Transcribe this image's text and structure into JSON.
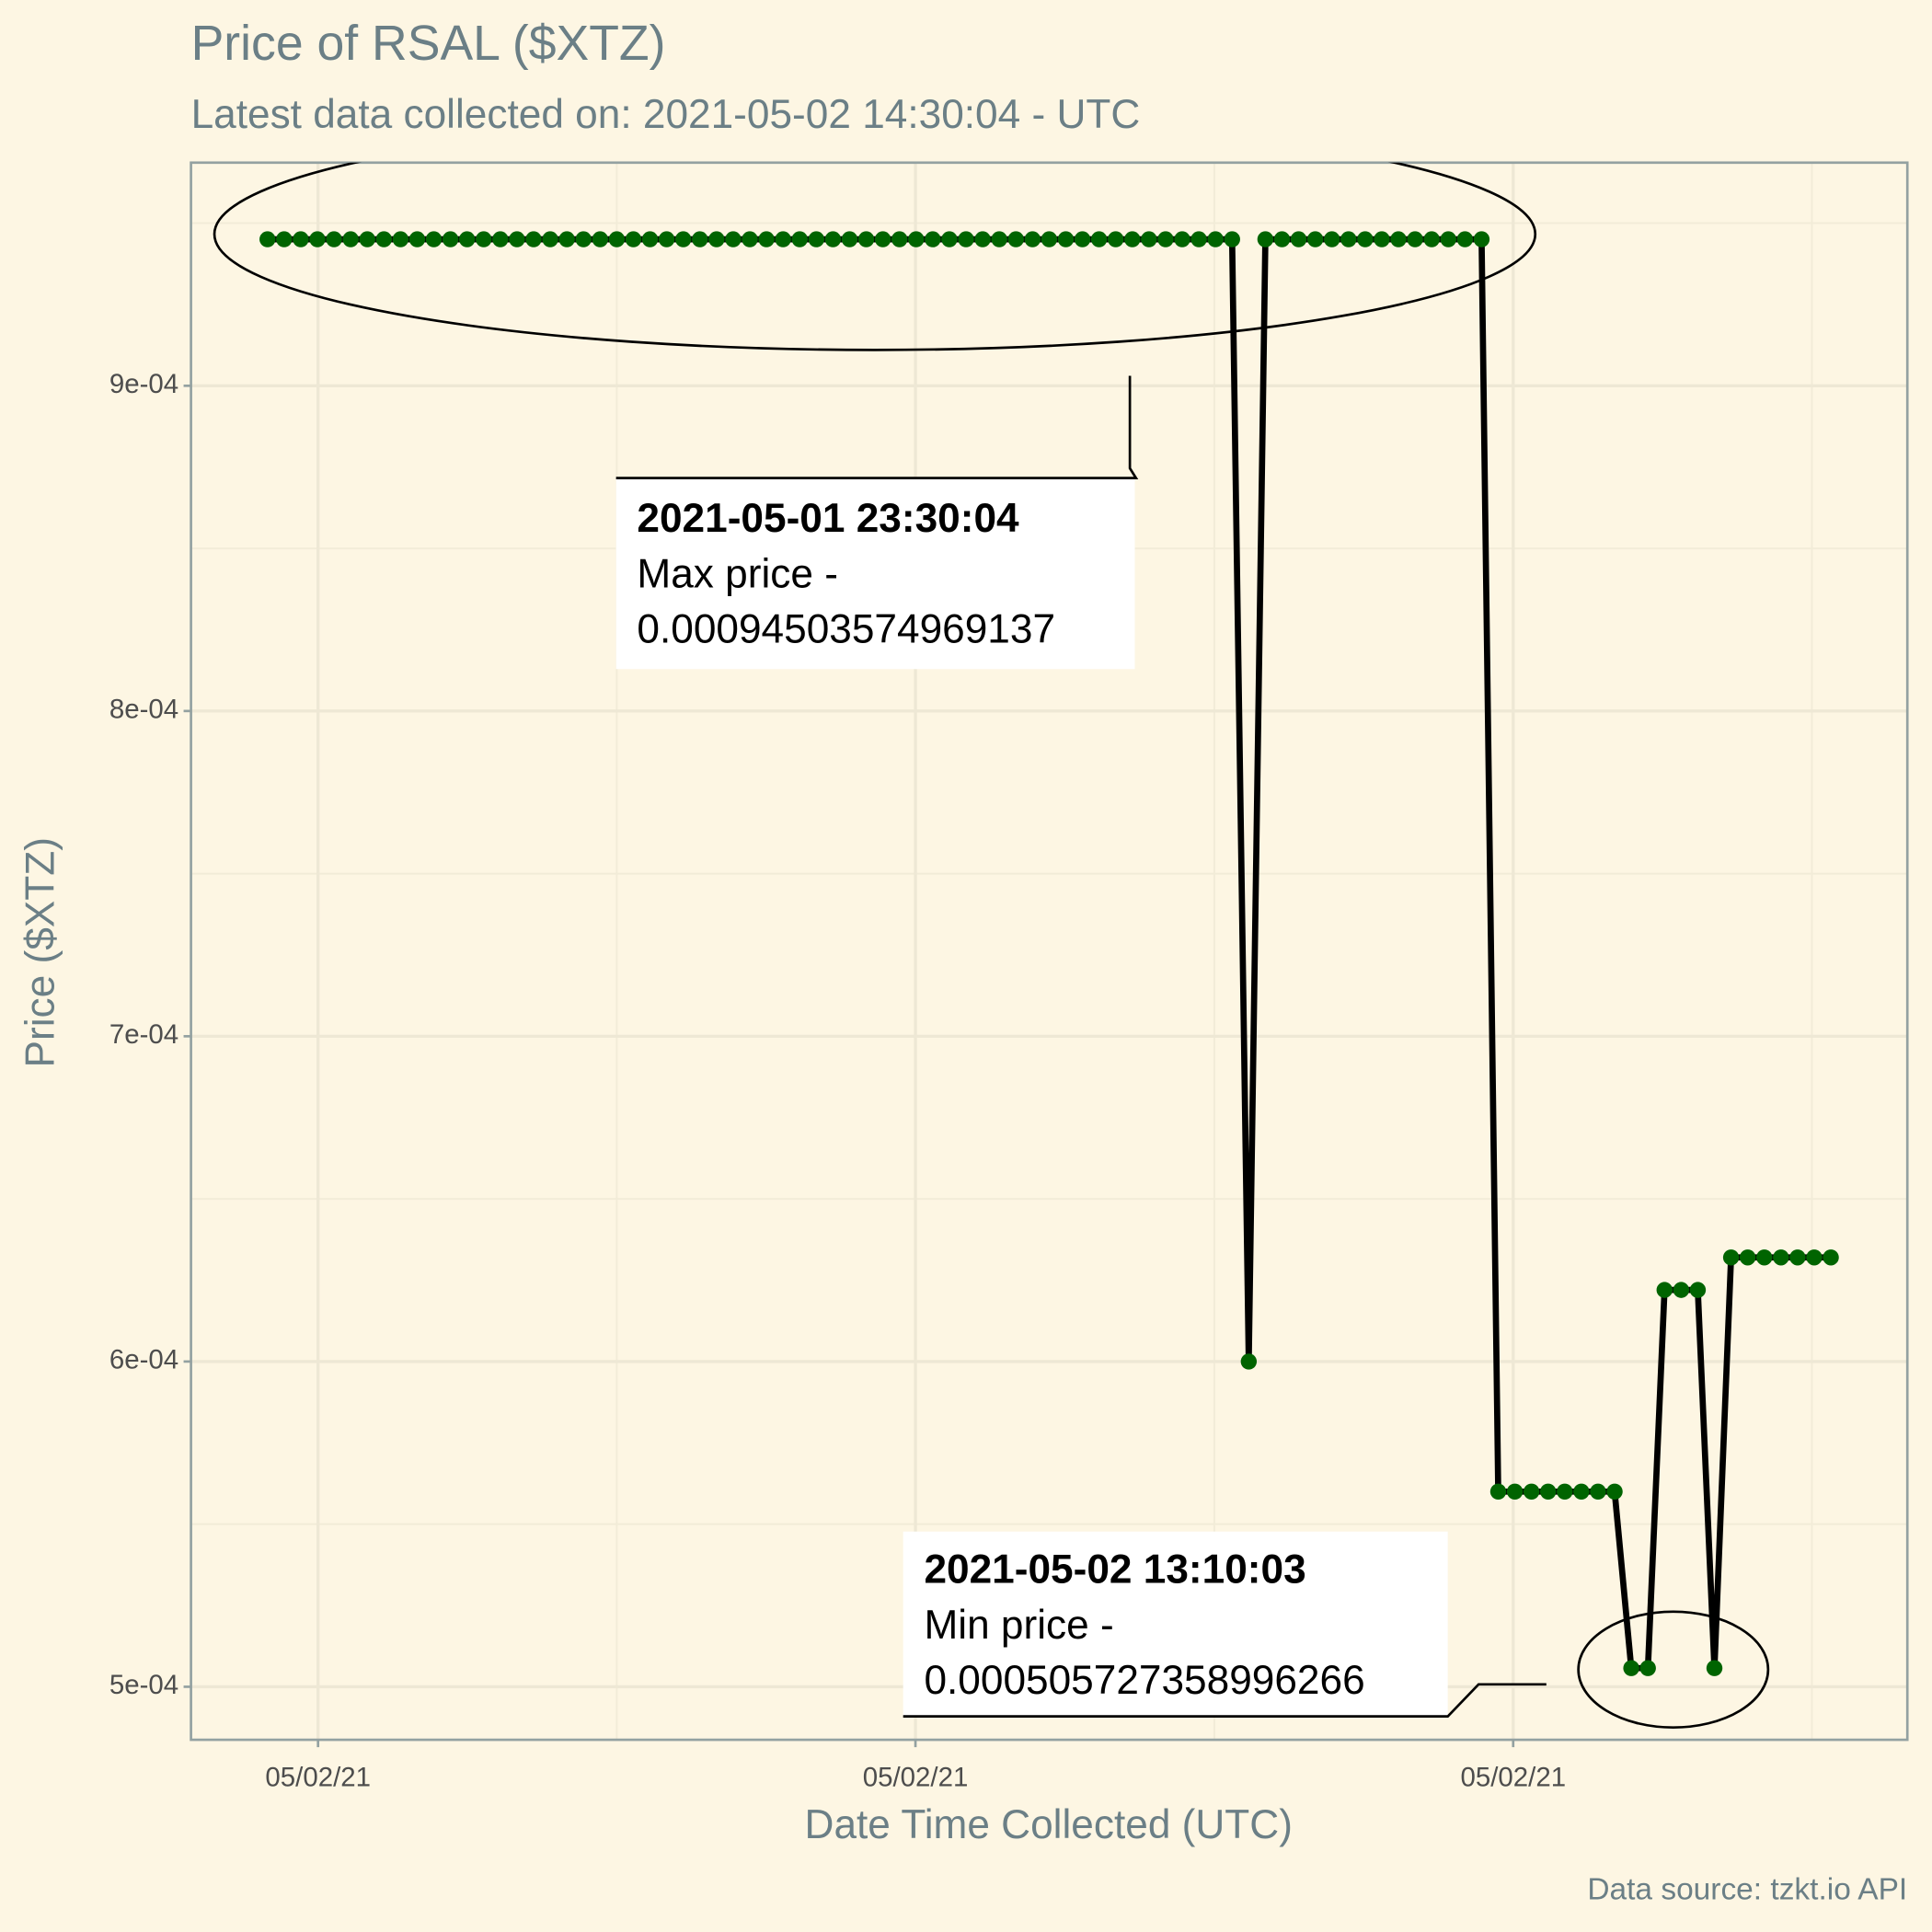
{
  "chart_data": {
    "type": "line",
    "title": "Price of RSAL ($XTZ)",
    "subtitle": "Latest data collected on: 2021-05-02 14:30:04  - UTC",
    "x_label": "Date Time Collected (UTC)",
    "y_label": "Price ($XTZ)",
    "caption": "Data source: tzkt.io API",
    "x": [
      0,
      1,
      2,
      3,
      4,
      5,
      6,
      7,
      8,
      9,
      10,
      11,
      12,
      13,
      14,
      15,
      16,
      17,
      18,
      19,
      20,
      21,
      22,
      23,
      24,
      25,
      26,
      27,
      28,
      29,
      30,
      31,
      32,
      33,
      34,
      35,
      36,
      37,
      38,
      39,
      40,
      41,
      42,
      43,
      44,
      45,
      46,
      47,
      48,
      49,
      50,
      51,
      52,
      53,
      54,
      55,
      56,
      57,
      58,
      59,
      60,
      61,
      62,
      63,
      64,
      65,
      66,
      67,
      68,
      69,
      70,
      71,
      72,
      73,
      74,
      75,
      76,
      77,
      78,
      79,
      80,
      81,
      82,
      83,
      84,
      85,
      86,
      87,
      88,
      89,
      90,
      91,
      92,
      93,
      94
    ],
    "series": [
      {
        "name": "Price",
        "color": "#006400",
        "line_color": "#000000",
        "values": [
          0.00094503574969137,
          0.00094503574969137,
          0.00094503574969137,
          0.00094503574969137,
          0.00094503574969137,
          0.00094503574969137,
          0.00094503574969137,
          0.00094503574969137,
          0.00094503574969137,
          0.00094503574969137,
          0.00094503574969137,
          0.00094503574969137,
          0.00094503574969137,
          0.00094503574969137,
          0.00094503574969137,
          0.00094503574969137,
          0.00094503574969137,
          0.00094503574969137,
          0.00094503574969137,
          0.00094503574969137,
          0.00094503574969137,
          0.00094503574969137,
          0.00094503574969137,
          0.00094503574969137,
          0.00094503574969137,
          0.00094503574969137,
          0.00094503574969137,
          0.00094503574969137,
          0.00094503574969137,
          0.00094503574969137,
          0.00094503574969137,
          0.00094503574969137,
          0.00094503574969137,
          0.00094503574969137,
          0.00094503574969137,
          0.00094503574969137,
          0.00094503574969137,
          0.00094503574969137,
          0.00094503574969137,
          0.00094503574969137,
          0.00094503574969137,
          0.00094503574969137,
          0.00094503574969137,
          0.00094503574969137,
          0.00094503574969137,
          0.00094503574969137,
          0.00094503574969137,
          0.00094503574969137,
          0.00094503574969137,
          0.00094503574969137,
          0.00094503574969137,
          0.00094503574969137,
          0.00094503574969137,
          0.00094503574969137,
          0.00094503574969137,
          0.00094503574969137,
          0.00094503574969137,
          0.00094503574969137,
          0.00094503574969137,
          0.0006,
          0.00094503574969137,
          0.00094503574969137,
          0.00094503574969137,
          0.00094503574969137,
          0.00094503574969137,
          0.00094503574969137,
          0.00094503574969137,
          0.00094503574969137,
          0.00094503574969137,
          0.00094503574969137,
          0.00094503574969137,
          0.00094503574969137,
          0.00094503574969137,
          0.00094503574969137,
          0.00056,
          0.00056,
          0.00056,
          0.00056,
          0.00056,
          0.00056,
          0.00056,
          0.00056,
          0.000505727358996266,
          0.000505727358996266,
          0.000622,
          0.000622,
          0.000622,
          0.000505727358996266,
          0.000632,
          0.000632,
          0.000632,
          0.000632,
          0.000632,
          0.000632,
          0.000632
        ]
      }
    ],
    "xlim": [
      -4.6,
      98.6
    ],
    "xticks": [
      {
        "value": 3.04,
        "label": "05/02/21"
      },
      {
        "value": 38.96,
        "label": "05/02/21"
      },
      {
        "value": 74.9,
        "label": "05/02/21"
      }
    ],
    "ylim": [
      0.0004837,
      0.0009686
    ],
    "yticks": [
      {
        "value": 0.0005,
        "label": "5e-04"
      },
      {
        "value": 0.0006,
        "label": "6e-04"
      },
      {
        "value": 0.0007,
        "label": "7e-04"
      },
      {
        "value": 0.0008,
        "label": "8e-04"
      },
      {
        "value": 0.0009,
        "label": "9e-04"
      }
    ],
    "grid": true,
    "annotations": [
      {
        "date": "2021-05-01 23:30:04",
        "label": "Max price -",
        "value": "0.00094503574969137"
      },
      {
        "date": "2021-05-02 13:10:03",
        "label": "Min price -",
        "value": "0.000505727358996266"
      }
    ]
  }
}
